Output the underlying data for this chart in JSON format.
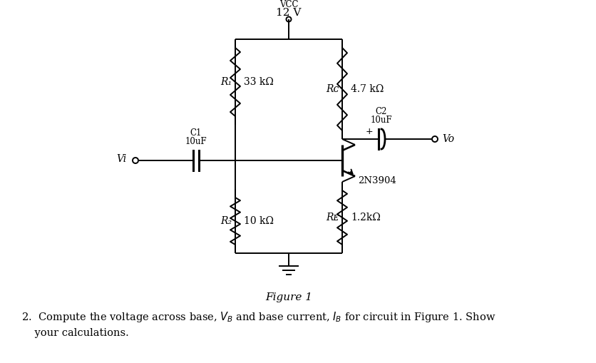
{
  "background_color": "#ffffff",
  "title": "Figure 1",
  "vcc_label": "VCC",
  "vcc_value": "12 V",
  "r1_label": "R₁",
  "r1_value": "33 kΩ",
  "rc_label": "Rᴄ",
  "rc_value": "4.7 kΩ",
  "r2_label": "R₂",
  "r2_value": "10 kΩ",
  "re_label": "Rᴇ",
  "re_value": "1.2kΩ",
  "c1_label": "C1",
  "c1_value": "10uF",
  "c2_label": "C2",
  "c2_value": "10uF",
  "transistor_label": "2N3904",
  "vi_label": "Vi",
  "vo_label": "Vo",
  "line_color": "#000000",
  "text_color": "#000000",
  "figsize": [
    8.37,
    5.09
  ],
  "dpi": 100
}
